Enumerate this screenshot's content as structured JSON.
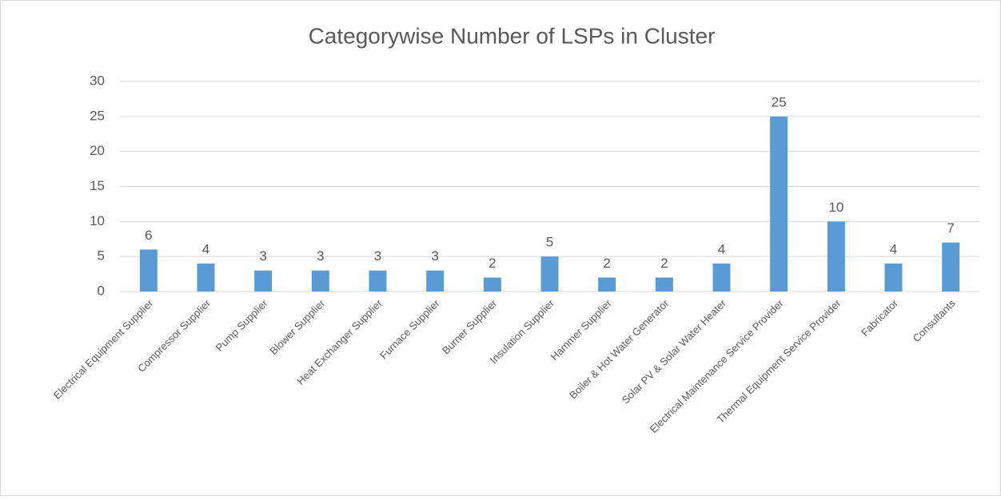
{
  "chart_data": {
    "type": "bar",
    "title": "Categorywise Number of LSPs in Cluster",
    "categories": [
      "Electrical Equipment Supplier",
      "Compressor Supplier",
      "Pump Supplier",
      "Blower Supplier",
      "Heat Exchanger Supplier",
      "Furnace Supplier",
      "Burner Supplier",
      "Insulation Supplier",
      "Hammer Supplier",
      "Boiler & Hot Water Generator",
      "Solar PV & Solar Water Heater",
      "Electrical Maintenance Service Provider",
      "Thermal Equipment Service Provider",
      "Fabricator",
      "Consultants"
    ],
    "values": [
      6,
      4,
      3,
      3,
      3,
      3,
      2,
      5,
      2,
      2,
      4,
      25,
      10,
      4,
      7
    ],
    "color": "#5b9bd5",
    "ylim": [
      0,
      30
    ],
    "yticks": [
      0,
      5,
      10,
      15,
      20,
      25,
      30
    ],
    "grid": true
  }
}
